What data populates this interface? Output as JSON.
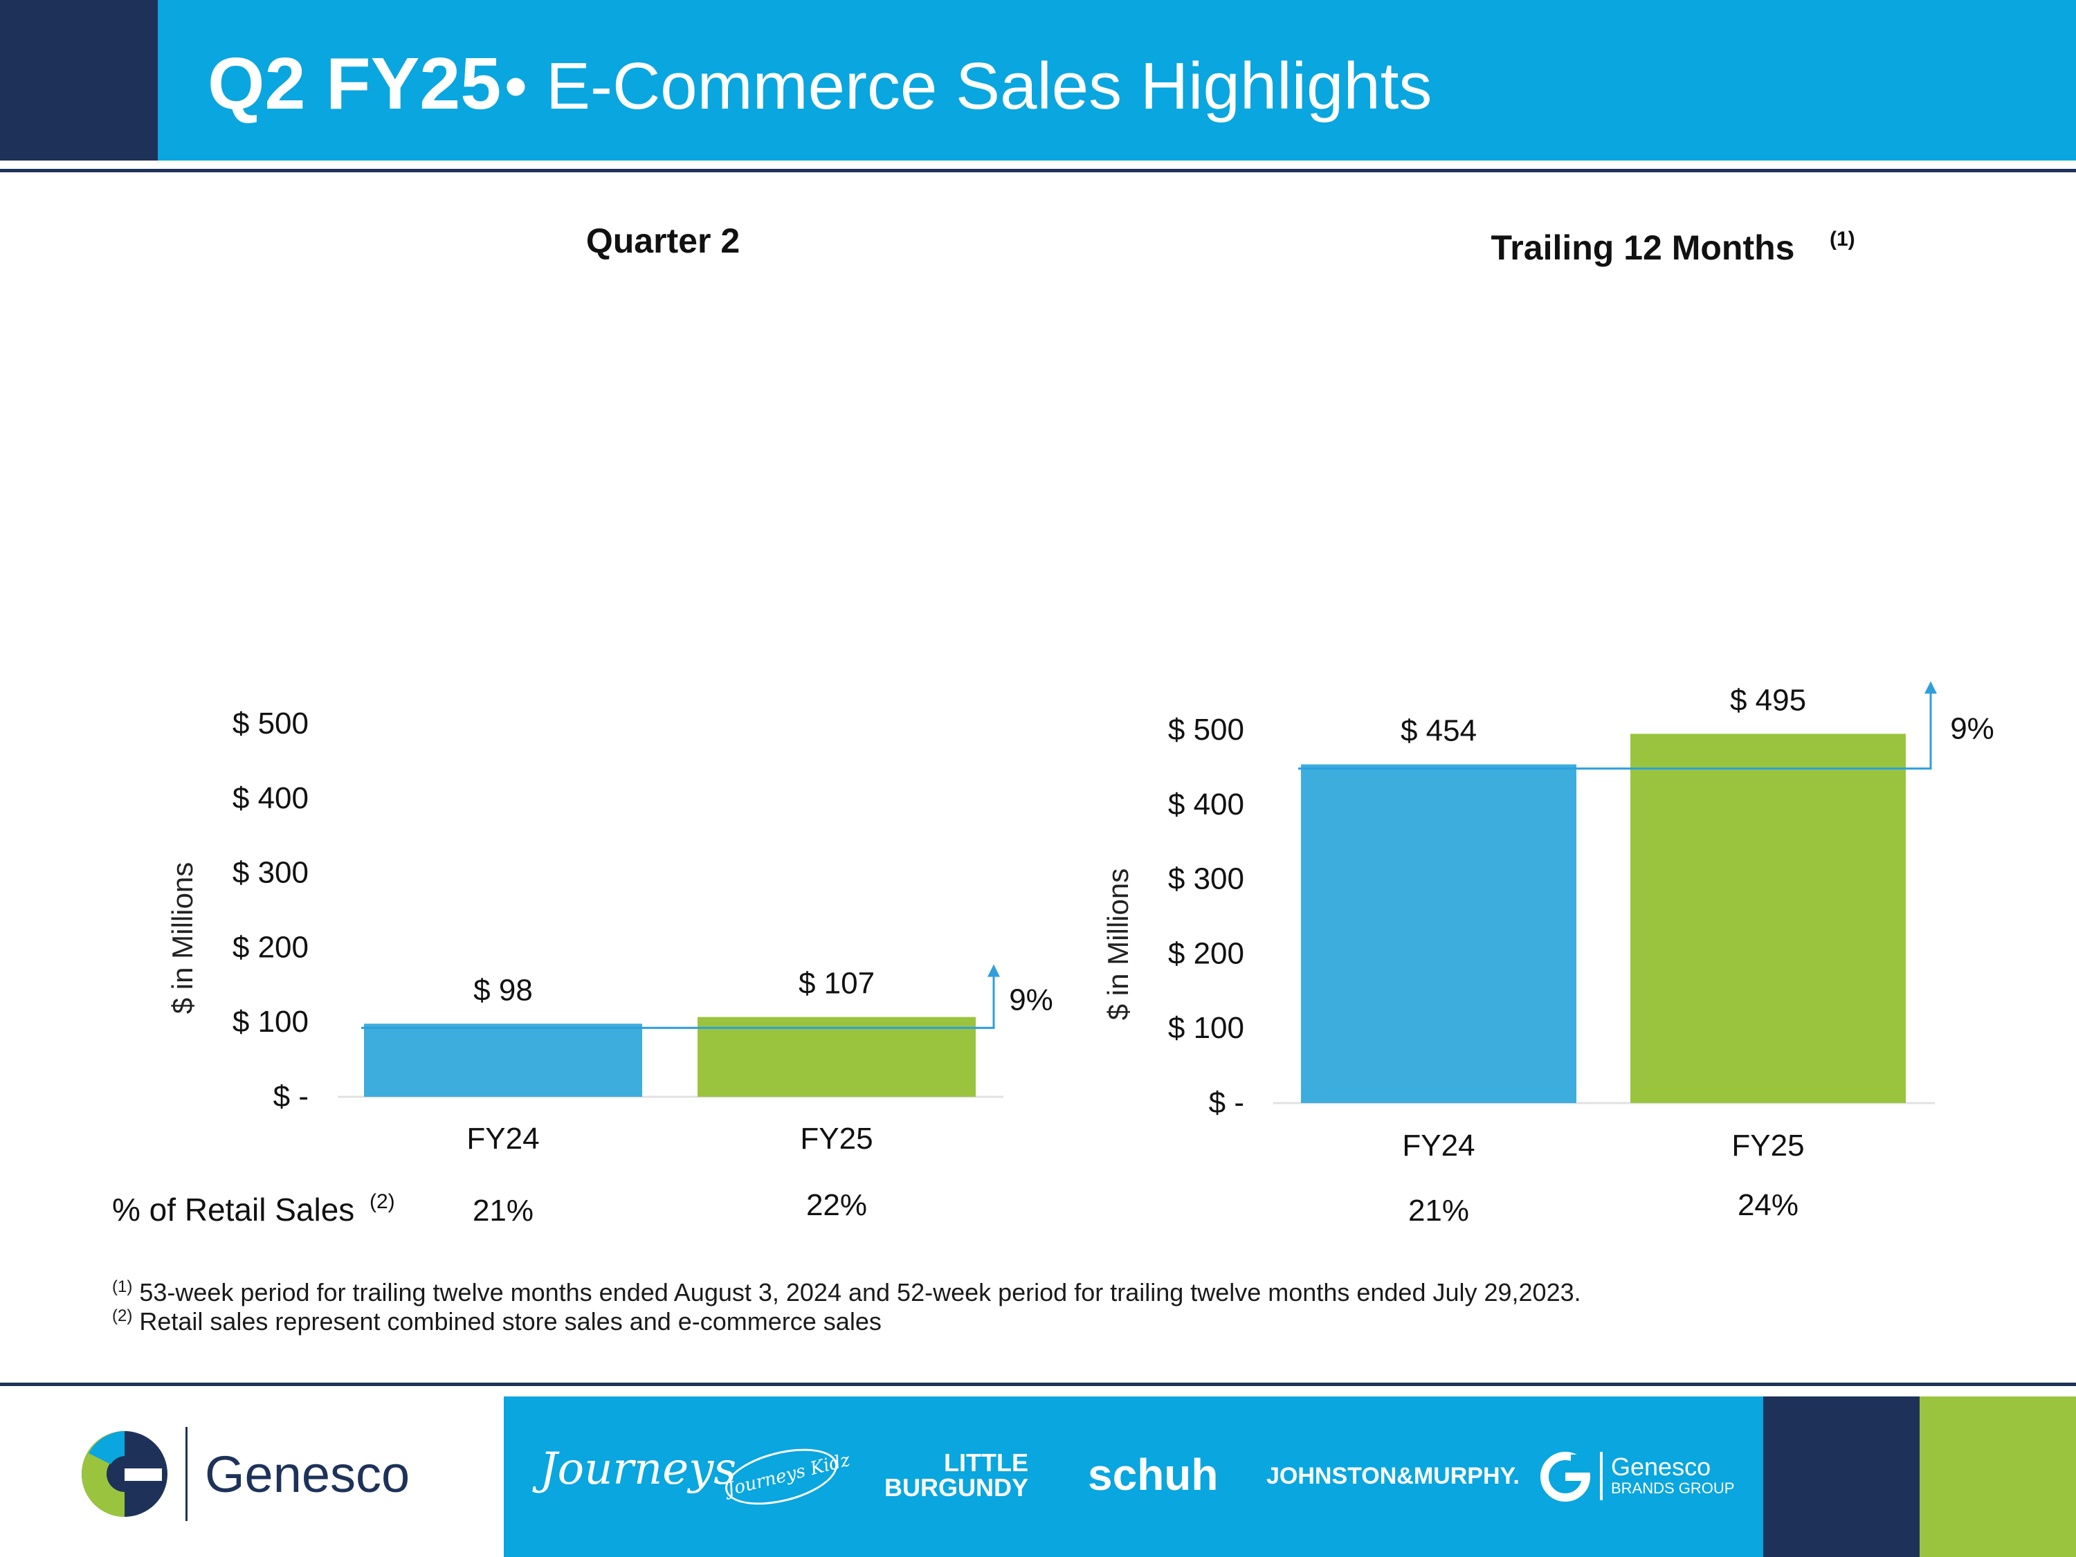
{
  "header": {
    "title_strong": "Q2 FY25",
    "title_rest": "• E-Commerce Sales Highlights"
  },
  "colors": {
    "navy": "#1e3259",
    "blue": "#09a6df",
    "bar_fy24": "#3dadde",
    "bar_fy25": "#9bc43e",
    "green": "#9bc43e"
  },
  "chart_data": [
    {
      "type": "bar",
      "title": "Quarter 2",
      "title_footnote": "",
      "ylabel": "$ in Millions",
      "ylim": [
        0,
        500
      ],
      "y_ticks": [
        0,
        100,
        200,
        300,
        400,
        500
      ],
      "y_tick_labels": [
        "$ -",
        "$ 100",
        "$ 200",
        "$ 300",
        "$ 400",
        "$ 500"
      ],
      "categories": [
        "FY24",
        "FY25"
      ],
      "values": [
        98,
        107
      ],
      "data_labels": [
        "$ 98",
        "$ 107"
      ],
      "growth_label": "9%",
      "retail_pct": [
        "21%",
        "22%"
      ],
      "retail_label": "% of Retail Sales",
      "retail_footnote": "(2)"
    },
    {
      "type": "bar",
      "title": "Trailing 12 Months",
      "title_footnote": "(1)",
      "ylabel": "$ in Millions",
      "ylim": [
        0,
        500
      ],
      "y_ticks": [
        0,
        100,
        200,
        300,
        400,
        500
      ],
      "y_tick_labels": [
        "$ -",
        "$ 100",
        "$ 200",
        "$ 300",
        "$ 400",
        "$ 500"
      ],
      "categories": [
        "FY24",
        "FY25"
      ],
      "values": [
        454,
        495
      ],
      "data_labels": [
        "$ 454",
        "$ 495"
      ],
      "growth_label": "9%",
      "retail_pct": [
        "21%",
        "24%"
      ]
    }
  ],
  "footnotes": [
    {
      "marker": "(1)",
      "text": " 53-week period for trailing twelve months ended August 3, 2024 and 52-week period for trailing twelve months ended July 29,2023."
    },
    {
      "marker": "(2)",
      "text": " Retail sales represent combined store sales and e-commerce sales"
    }
  ],
  "footer": {
    "company": "Genesco",
    "brands": [
      "Journeys",
      "Journeys Kidz",
      "LITTLE",
      "BURGUNDY",
      "schuh",
      "JOHNSTON&MURPHY.",
      "Genesco",
      "BRANDS GROUP"
    ]
  }
}
